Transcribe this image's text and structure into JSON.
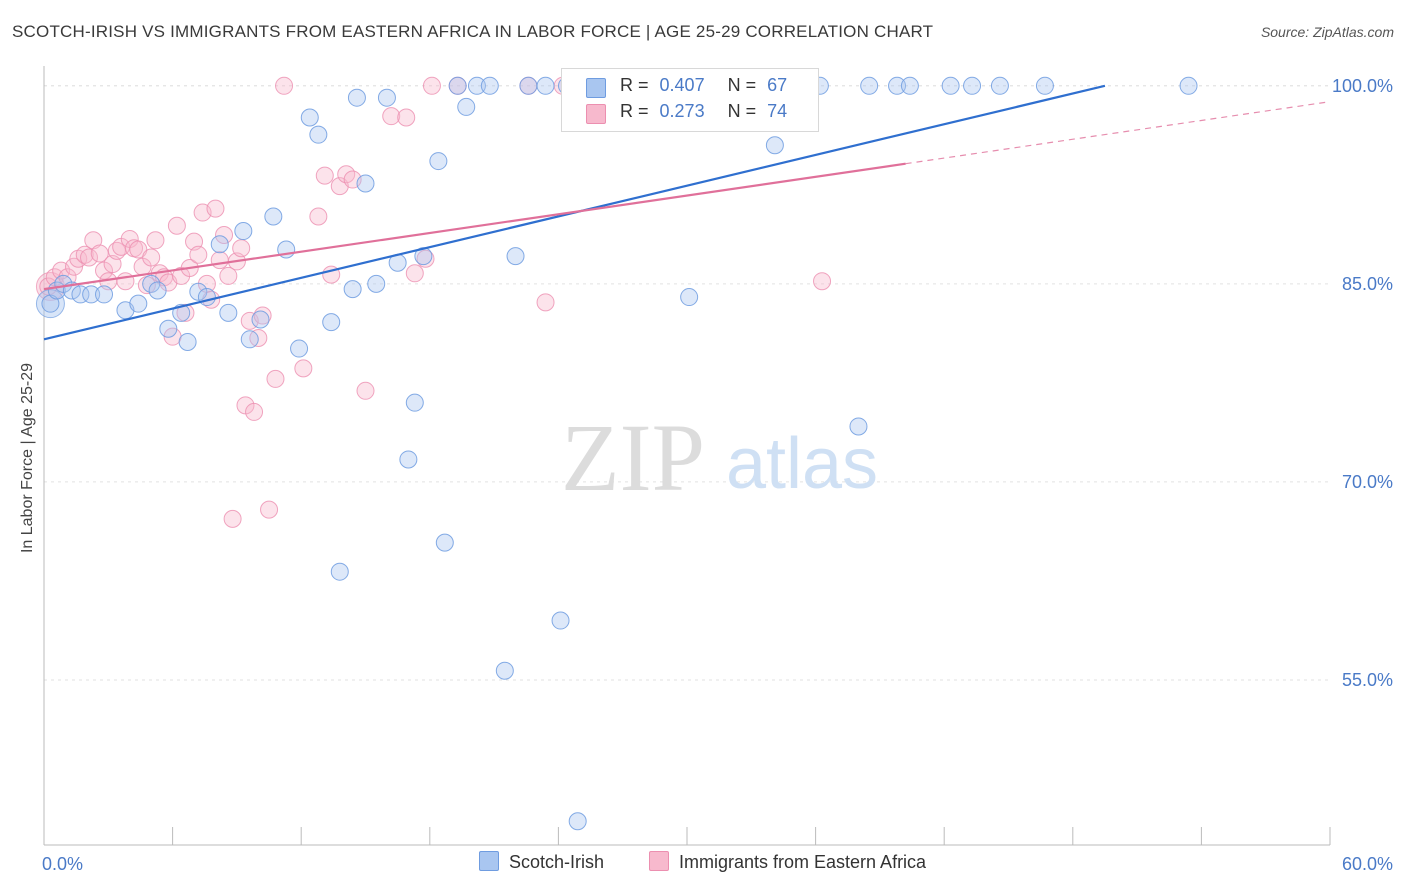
{
  "title": "SCOTCH-IRISH VS IMMIGRANTS FROM EASTERN AFRICA IN LABOR FORCE | AGE 25-29 CORRELATION CHART",
  "source": "Source: ZipAtlas.com",
  "watermark": {
    "zip": "ZIP",
    "atlas": "atlas"
  },
  "legend_top": [
    {
      "r_label": "R =",
      "r_value": "0.407",
      "n_label": "N =",
      "n_value": "67"
    },
    {
      "r_label": "R =",
      "r_value": "0.273",
      "n_label": "N =",
      "n_value": "74"
    }
  ],
  "legend_bottom": [
    "Scotch-Irish",
    "Immigrants from Eastern Africa"
  ],
  "colors": {
    "blue_fill": "#a9c6f0",
    "blue_stroke": "#6f9ce0",
    "blue_line": "#2f6fcf",
    "pink_fill": "#f7b9cd",
    "pink_stroke": "#ec8fb0",
    "pink_line": "#e0709a",
    "grid": "#e2e2e2",
    "tick_label": "#4a7ac7",
    "axis": "#bbbbbb"
  },
  "chart_data": {
    "type": "scatter",
    "title": "SCOTCH-IRISH VS IMMIGRANTS FROM EASTERN AFRICA IN LABOR FORCE | AGE 25-29 CORRELATION CHART",
    "xlabel": "",
    "ylabel": "In Labor Force | Age 25-29",
    "xlim": [
      0,
      60
    ],
    "ylim": [
      42.5,
      101.5
    ],
    "x_tick_labels": [
      "0.0%",
      "60.0%"
    ],
    "y_ticks": [
      55,
      70,
      85,
      100
    ],
    "y_tick_labels": [
      "55.0%",
      "70.0%",
      "85.0%",
      "100.0%"
    ],
    "series": [
      {
        "name": "Scotch-Irish",
        "R": 0.407,
        "N": 67,
        "trend": {
          "x0": 0,
          "y0": 80.8,
          "x1": 49.5,
          "y1": 100.0
        },
        "points": [
          [
            0.3,
            83.5
          ],
          [
            0.6,
            84.5
          ],
          [
            0.9,
            85.0
          ],
          [
            1.3,
            84.5
          ],
          [
            1.7,
            84.2
          ],
          [
            2.2,
            84.2
          ],
          [
            2.8,
            84.2
          ],
          [
            3.8,
            83.0
          ],
          [
            4.4,
            83.5
          ],
          [
            5.0,
            85.0
          ],
          [
            5.3,
            84.5
          ],
          [
            5.8,
            81.6
          ],
          [
            6.4,
            82.8
          ],
          [
            6.7,
            80.6
          ],
          [
            7.2,
            84.4
          ],
          [
            7.6,
            84.0
          ],
          [
            8.2,
            88.0
          ],
          [
            8.6,
            82.8
          ],
          [
            9.3,
            89.0
          ],
          [
            9.6,
            80.8
          ],
          [
            10.1,
            82.3
          ],
          [
            10.7,
            90.1
          ],
          [
            11.3,
            87.6
          ],
          [
            11.9,
            80.1
          ],
          [
            12.4,
            97.6
          ],
          [
            12.8,
            96.3
          ],
          [
            13.4,
            82.1
          ],
          [
            13.8,
            63.2
          ],
          [
            14.4,
            84.6
          ],
          [
            14.6,
            99.1
          ],
          [
            15.0,
            92.6
          ],
          [
            15.5,
            85.0
          ],
          [
            16.0,
            99.1
          ],
          [
            16.5,
            86.6
          ],
          [
            17.0,
            71.7
          ],
          [
            17.3,
            76.0
          ],
          [
            17.7,
            87.1
          ],
          [
            18.4,
            94.3
          ],
          [
            18.7,
            65.4
          ],
          [
            19.3,
            100.0
          ],
          [
            19.7,
            98.4
          ],
          [
            20.2,
            100.0
          ],
          [
            20.8,
            100.0
          ],
          [
            21.5,
            55.7
          ],
          [
            22.0,
            87.1
          ],
          [
            22.6,
            100.0
          ],
          [
            23.4,
            100.0
          ],
          [
            24.1,
            59.5
          ],
          [
            24.4,
            100.0
          ],
          [
            24.9,
            44.3
          ],
          [
            28.1,
            100.0
          ],
          [
            30.1,
            84.0
          ],
          [
            30.9,
            100.0
          ],
          [
            32.0,
            100.0
          ],
          [
            33.2,
            100.0
          ],
          [
            34.1,
            95.5
          ],
          [
            35.4,
            100.0
          ],
          [
            36.2,
            100.0
          ],
          [
            38.0,
            74.2
          ],
          [
            38.5,
            100.0
          ],
          [
            39.8,
            100.0
          ],
          [
            40.4,
            100.0
          ],
          [
            42.3,
            100.0
          ],
          [
            43.3,
            100.0
          ],
          [
            44.6,
            100.0
          ],
          [
            46.7,
            100.0
          ],
          [
            53.4,
            100.0
          ]
        ]
      },
      {
        "name": "Immigrants from Eastern Africa",
        "R": 0.273,
        "N": 74,
        "trend": {
          "x0": 0,
          "y0": 84.6,
          "x1": 40.2,
          "y1": 94.1
        },
        "trend_dashed": {
          "x0": 40.2,
          "y0": 94.1,
          "x1": 60,
          "y1": 98.8
        },
        "points": [
          [
            0.2,
            84.8
          ],
          [
            0.5,
            85.5
          ],
          [
            0.8,
            86.0
          ],
          [
            1.1,
            85.5
          ],
          [
            1.4,
            86.3
          ],
          [
            1.6,
            86.9
          ],
          [
            1.9,
            87.2
          ],
          [
            2.1,
            87.0
          ],
          [
            2.3,
            88.3
          ],
          [
            2.6,
            87.3
          ],
          [
            2.8,
            86.0
          ],
          [
            3.0,
            85.2
          ],
          [
            3.2,
            86.5
          ],
          [
            3.4,
            87.5
          ],
          [
            3.6,
            87.8
          ],
          [
            3.8,
            85.2
          ],
          [
            4.0,
            88.4
          ],
          [
            4.2,
            87.7
          ],
          [
            4.4,
            87.6
          ],
          [
            4.6,
            86.3
          ],
          [
            4.8,
            84.9
          ],
          [
            5.0,
            87.0
          ],
          [
            5.2,
            88.3
          ],
          [
            5.4,
            85.8
          ],
          [
            5.6,
            85.5
          ],
          [
            5.8,
            85.1
          ],
          [
            6.0,
            81.0
          ],
          [
            6.2,
            89.4
          ],
          [
            6.4,
            85.6
          ],
          [
            6.6,
            82.8
          ],
          [
            6.8,
            86.2
          ],
          [
            7.0,
            88.2
          ],
          [
            7.2,
            87.2
          ],
          [
            7.4,
            90.4
          ],
          [
            7.6,
            85.0
          ],
          [
            7.8,
            83.8
          ],
          [
            8.0,
            90.7
          ],
          [
            8.2,
            86.8
          ],
          [
            8.4,
            88.7
          ],
          [
            8.6,
            85.6
          ],
          [
            8.8,
            67.2
          ],
          [
            9.0,
            86.7
          ],
          [
            9.2,
            87.7
          ],
          [
            9.4,
            75.8
          ],
          [
            9.6,
            82.2
          ],
          [
            9.8,
            75.3
          ],
          [
            10.0,
            80.9
          ],
          [
            10.2,
            82.6
          ],
          [
            10.5,
            67.9
          ],
          [
            10.8,
            77.8
          ],
          [
            11.2,
            100.0
          ],
          [
            12.1,
            78.6
          ],
          [
            12.8,
            90.1
          ],
          [
            13.1,
            93.2
          ],
          [
            13.4,
            85.7
          ],
          [
            13.8,
            92.4
          ],
          [
            14.1,
            93.3
          ],
          [
            14.4,
            92.9
          ],
          [
            15.0,
            76.9
          ],
          [
            16.2,
            97.7
          ],
          [
            16.9,
            97.6
          ],
          [
            17.3,
            85.8
          ],
          [
            17.8,
            86.9
          ],
          [
            18.1,
            100.0
          ],
          [
            19.3,
            100.0
          ],
          [
            22.6,
            100.0
          ],
          [
            23.4,
            83.6
          ],
          [
            24.2,
            100.0
          ],
          [
            24.9,
            100.0
          ],
          [
            25.6,
            100.0
          ],
          [
            26.1,
            100.0
          ],
          [
            29.0,
            100.0
          ],
          [
            33.9,
            100.0
          ],
          [
            36.3,
            85.2
          ]
        ]
      }
    ]
  }
}
